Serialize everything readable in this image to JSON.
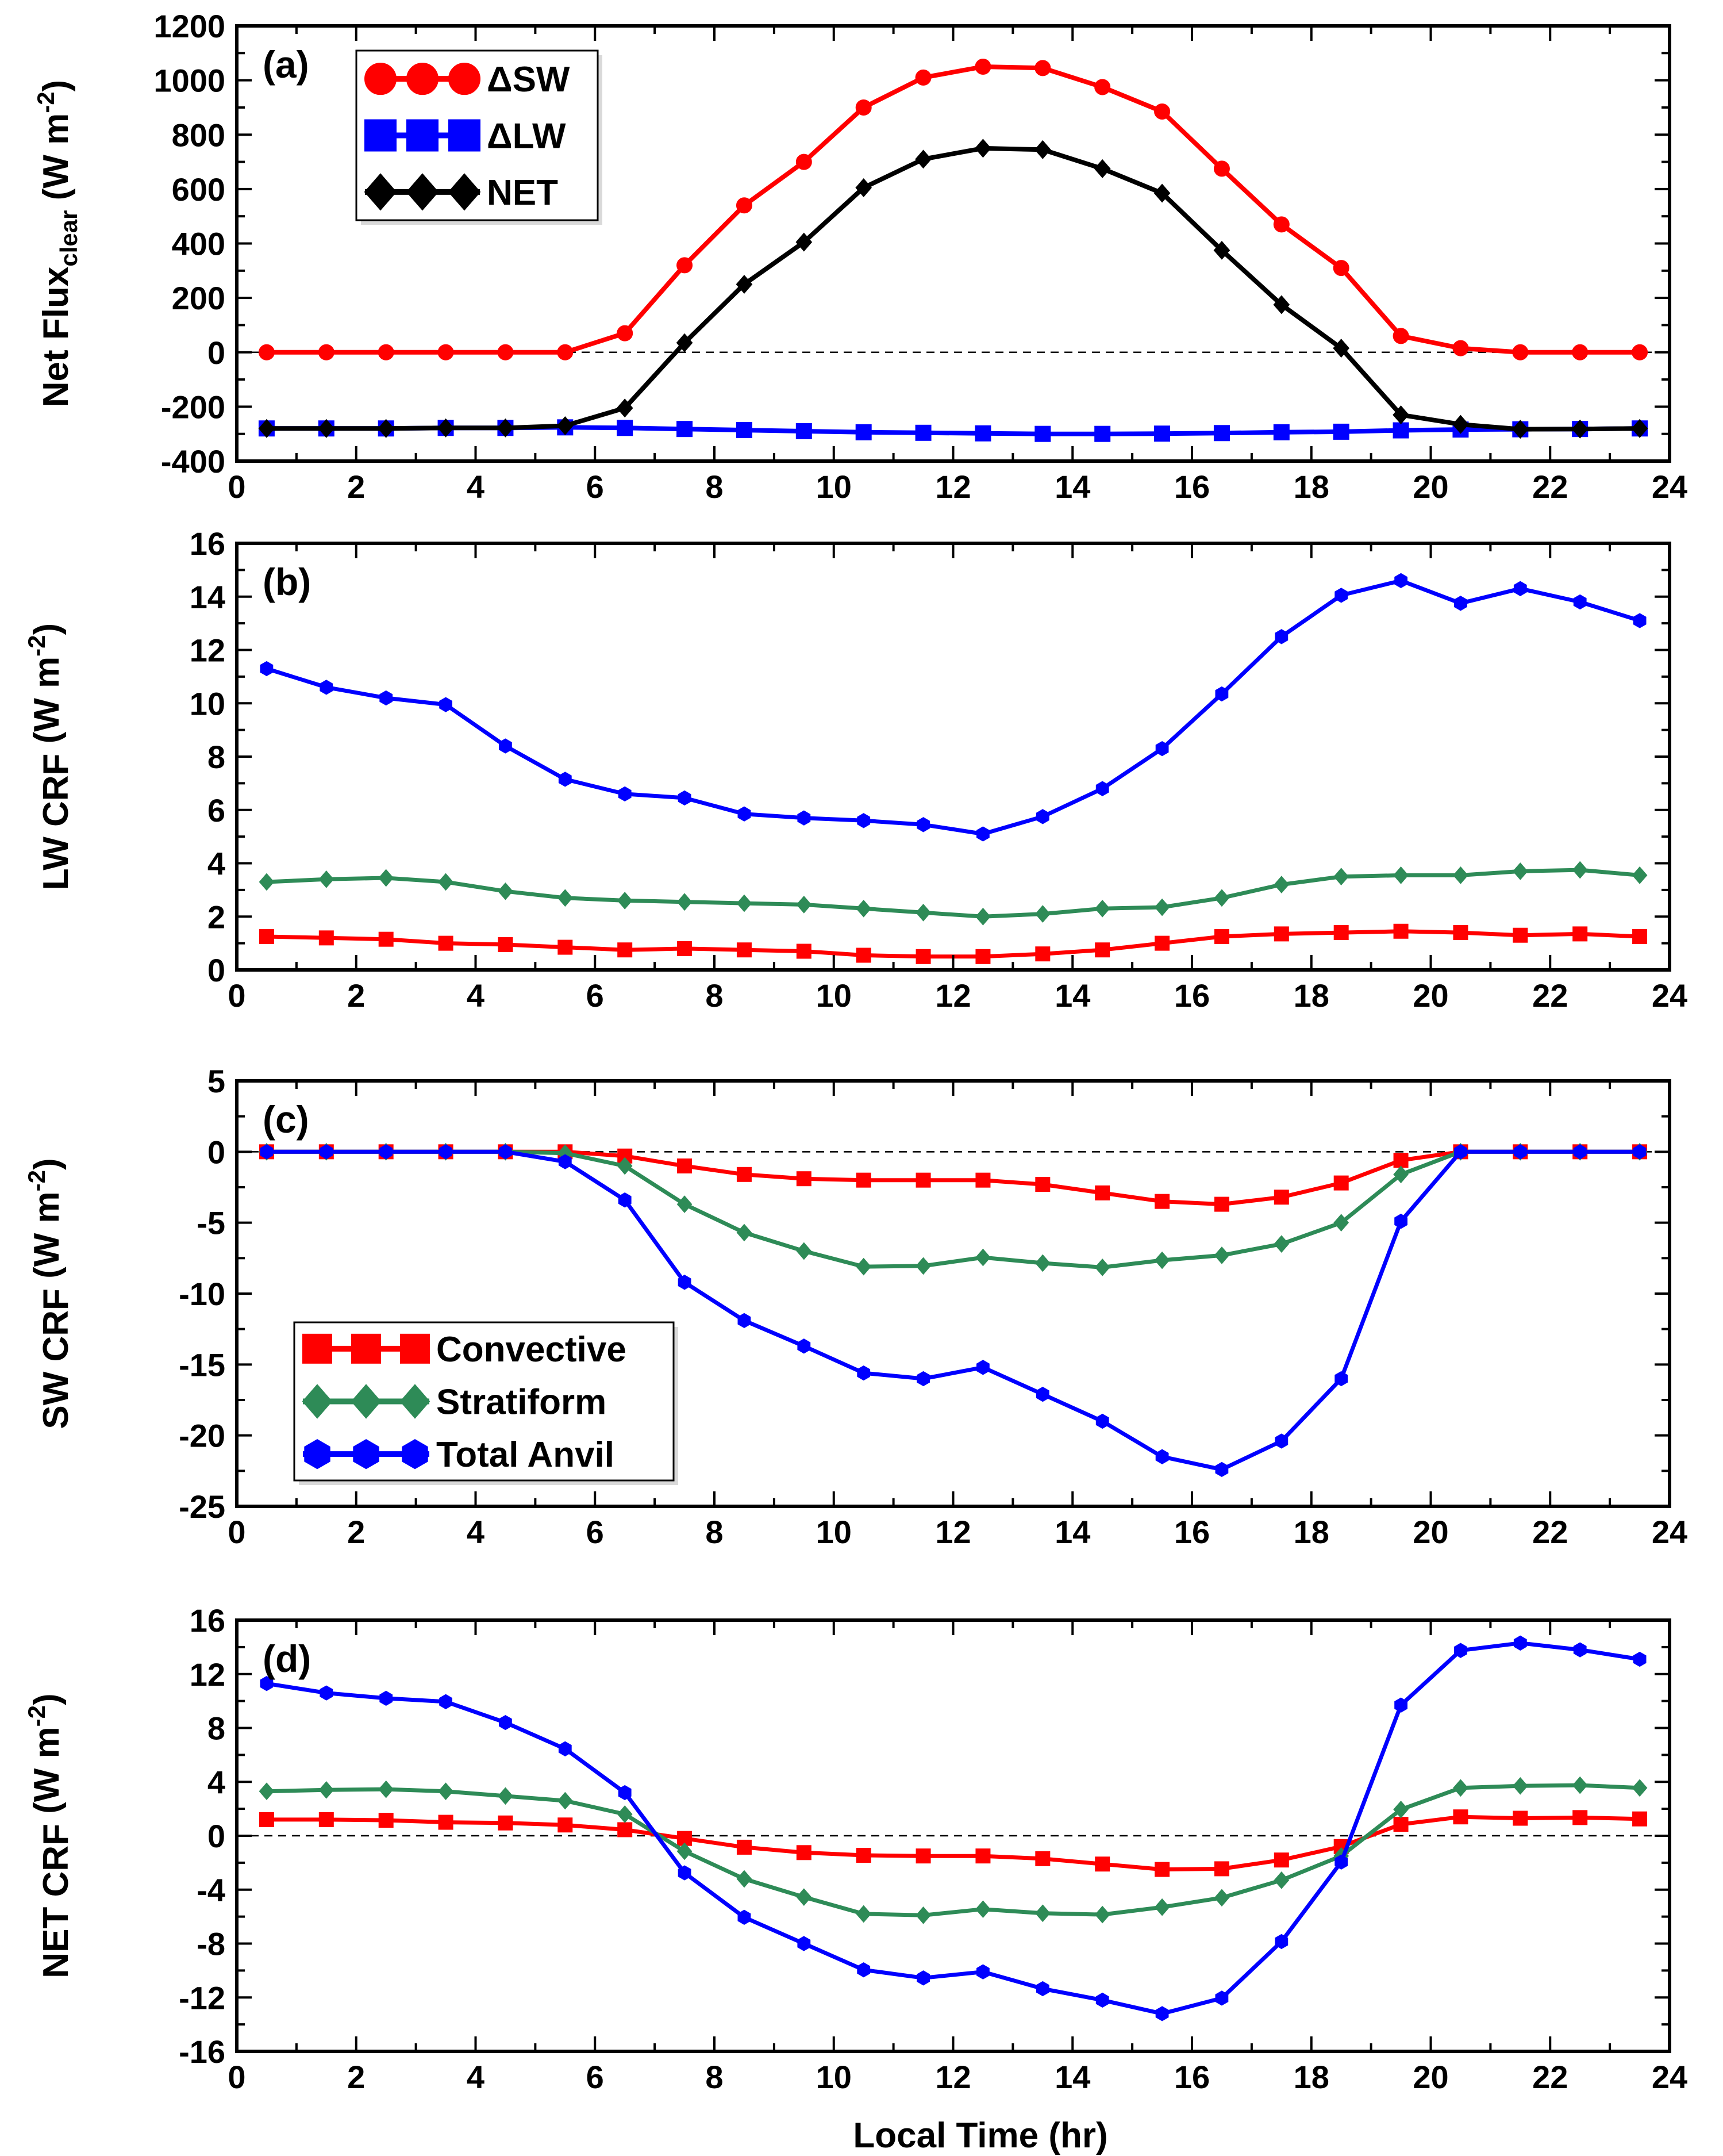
{
  "figure": {
    "xlabel": "Local Time (hr)"
  },
  "chart_data": [
    {
      "type": "line",
      "panel_label": "(a)",
      "ylabel_main": "Net Flux",
      "ylabel_sub": "clear",
      "ylabel_unit": "(W m",
      "ylabel_sup": "-2",
      "ylabel_close": ")",
      "xlim": [
        0,
        24
      ],
      "ylim": [
        -400,
        1200
      ],
      "xticks": [
        0,
        2,
        4,
        6,
        8,
        10,
        12,
        14,
        16,
        18,
        20,
        22,
        24
      ],
      "yticks": [
        -400,
        -200,
        0,
        200,
        400,
        600,
        800,
        1000,
        1200
      ],
      "zero_line": true,
      "legend_position": "top-left",
      "x": [
        0.5,
        1.5,
        2.5,
        3.5,
        4.5,
        5.5,
        6.5,
        7.5,
        8.5,
        9.5,
        10.5,
        11.5,
        12.5,
        13.5,
        14.5,
        15.5,
        16.5,
        17.5,
        18.5,
        19.5,
        20.5,
        21.5,
        22.5,
        23.5
      ],
      "series": [
        {
          "name": "ΔSW",
          "color": "#ff0000",
          "marker": "circle",
          "values": [
            0,
            0,
            0,
            0,
            0,
            0,
            70,
            320,
            540,
            700,
            900,
            1010,
            1050,
            1045,
            975,
            885,
            675,
            470,
            310,
            60,
            15,
            0,
            0,
            0
          ]
        },
        {
          "name": "ΔLW",
          "color": "#0000ff",
          "marker": "square",
          "values": [
            -280,
            -280,
            -280,
            -278,
            -278,
            -276,
            -278,
            -282,
            -286,
            -290,
            -294,
            -296,
            -298,
            -300,
            -300,
            -299,
            -297,
            -294,
            -292,
            -287,
            -284,
            -283,
            -282,
            -280
          ]
        },
        {
          "name": "NET",
          "color": "#000000",
          "marker": "diamond",
          "values": [
            -280,
            -280,
            -280,
            -278,
            -278,
            -270,
            -205,
            35,
            250,
            405,
            605,
            710,
            750,
            745,
            675,
            585,
            375,
            175,
            15,
            -230,
            -265,
            -283,
            -282,
            -280
          ]
        }
      ]
    },
    {
      "type": "line",
      "panel_label": "(b)",
      "ylabel_main": "LW CRF ",
      "ylabel_sub": "",
      "ylabel_unit": "(W m",
      "ylabel_sup": "-2",
      "ylabel_close": ")",
      "xlim": [
        0,
        24
      ],
      "ylim": [
        0,
        16
      ],
      "xticks": [
        0,
        2,
        4,
        6,
        8,
        10,
        12,
        14,
        16,
        18,
        20,
        22,
        24
      ],
      "yticks": [
        0,
        2,
        4,
        6,
        8,
        10,
        12,
        14,
        16
      ],
      "zero_line": false,
      "x": [
        0.5,
        1.5,
        2.5,
        3.5,
        4.5,
        5.5,
        6.5,
        7.5,
        8.5,
        9.5,
        10.5,
        11.5,
        12.5,
        13.5,
        14.5,
        15.5,
        16.5,
        17.5,
        18.5,
        19.5,
        20.5,
        21.5,
        22.5,
        23.5
      ],
      "series": [
        {
          "name": "Convective",
          "color": "#ff0000",
          "marker": "square",
          "values": [
            1.25,
            1.2,
            1.15,
            1.0,
            0.95,
            0.85,
            0.75,
            0.8,
            0.75,
            0.7,
            0.55,
            0.5,
            0.5,
            0.6,
            0.75,
            1.0,
            1.25,
            1.35,
            1.4,
            1.45,
            1.4,
            1.3,
            1.35,
            1.25
          ]
        },
        {
          "name": "Stratiform",
          "color": "#2e8b57",
          "marker": "diamond",
          "values": [
            3.3,
            3.4,
            3.45,
            3.3,
            2.95,
            2.7,
            2.6,
            2.55,
            2.5,
            2.45,
            2.3,
            2.15,
            2.0,
            2.1,
            2.3,
            2.35,
            2.7,
            3.2,
            3.5,
            3.55,
            3.55,
            3.7,
            3.75,
            3.55
          ]
        },
        {
          "name": "Total Anvil",
          "color": "#0000ff",
          "marker": "hexagon",
          "values": [
            11.3,
            10.6,
            10.2,
            9.95,
            8.4,
            7.15,
            6.6,
            6.45,
            5.85,
            5.7,
            5.6,
            5.45,
            5.1,
            5.75,
            6.8,
            8.3,
            10.35,
            12.5,
            14.05,
            14.6,
            13.75,
            14.3,
            13.8,
            13.1
          ]
        }
      ]
    },
    {
      "type": "line",
      "panel_label": "(c)",
      "ylabel_main": "SW CRF ",
      "ylabel_sub": "",
      "ylabel_unit": "(W m",
      "ylabel_sup": "-2",
      "ylabel_close": ")",
      "xlim": [
        0,
        24
      ],
      "ylim": [
        -25,
        5
      ],
      "xticks": [
        0,
        2,
        4,
        6,
        8,
        10,
        12,
        14,
        16,
        18,
        20,
        22,
        24
      ],
      "yticks": [
        -25,
        -20,
        -15,
        -10,
        -5,
        0,
        5
      ],
      "zero_line": true,
      "legend_position": "bottom-left",
      "x": [
        0.5,
        1.5,
        2.5,
        3.5,
        4.5,
        5.5,
        6.5,
        7.5,
        8.5,
        9.5,
        10.5,
        11.5,
        12.5,
        13.5,
        14.5,
        15.5,
        16.5,
        17.5,
        18.5,
        19.5,
        20.5,
        21.5,
        22.5,
        23.5
      ],
      "series": [
        {
          "name": "Convective",
          "color": "#ff0000",
          "marker": "square",
          "values": [
            0,
            0,
            0,
            0,
            0,
            0,
            -0.3,
            -1.0,
            -1.6,
            -1.9,
            -2.0,
            -2.0,
            -2.0,
            -2.3,
            -2.9,
            -3.5,
            -3.7,
            -3.2,
            -2.2,
            -0.6,
            0,
            0,
            0,
            0
          ]
        },
        {
          "name": "Stratiform",
          "color": "#2e8b57",
          "marker": "diamond",
          "values": [
            0,
            0,
            0,
            0,
            0,
            -0.1,
            -1.0,
            -3.7,
            -5.7,
            -7.0,
            -8.1,
            -8.05,
            -7.45,
            -7.85,
            -8.15,
            -7.65,
            -7.3,
            -6.5,
            -5.0,
            -1.6,
            0,
            0,
            0,
            0
          ]
        },
        {
          "name": "Total Anvil",
          "color": "#0000ff",
          "marker": "hexagon",
          "values": [
            0,
            0,
            0,
            0,
            0,
            -0.7,
            -3.4,
            -9.2,
            -11.9,
            -13.7,
            -15.6,
            -16.0,
            -15.2,
            -17.1,
            -19.0,
            -21.5,
            -22.4,
            -20.4,
            -16.0,
            -4.9,
            0,
            0,
            0,
            0
          ]
        }
      ]
    },
    {
      "type": "line",
      "panel_label": "(d)",
      "ylabel_main": "NET CRF ",
      "ylabel_sub": "",
      "ylabel_unit": "(W m",
      "ylabel_sup": "-2",
      "ylabel_close": ")",
      "xlim": [
        0,
        24
      ],
      "ylim": [
        -16,
        16
      ],
      "xticks": [
        0,
        2,
        4,
        6,
        8,
        10,
        12,
        14,
        16,
        18,
        20,
        22,
        24
      ],
      "yticks": [
        -16,
        -12,
        -8,
        -4,
        0,
        4,
        8,
        12,
        16
      ],
      "zero_line": true,
      "x": [
        0.5,
        1.5,
        2.5,
        3.5,
        4.5,
        5.5,
        6.5,
        7.5,
        8.5,
        9.5,
        10.5,
        11.5,
        12.5,
        13.5,
        14.5,
        15.5,
        16.5,
        17.5,
        18.5,
        19.5,
        20.5,
        21.5,
        22.5,
        23.5
      ],
      "series": [
        {
          "name": "Convective",
          "color": "#ff0000",
          "marker": "square",
          "values": [
            1.2,
            1.2,
            1.15,
            1.0,
            0.95,
            0.8,
            0.45,
            -0.2,
            -0.85,
            -1.25,
            -1.45,
            -1.5,
            -1.5,
            -1.7,
            -2.1,
            -2.5,
            -2.45,
            -1.8,
            -0.8,
            0.85,
            1.4,
            1.3,
            1.35,
            1.25
          ]
        },
        {
          "name": "Stratiform",
          "color": "#2e8b57",
          "marker": "diamond",
          "values": [
            3.3,
            3.4,
            3.45,
            3.3,
            2.95,
            2.6,
            1.6,
            -1.15,
            -3.2,
            -4.55,
            -5.8,
            -5.9,
            -5.45,
            -5.75,
            -5.85,
            -5.3,
            -4.6,
            -3.3,
            -1.5,
            1.95,
            3.55,
            3.7,
            3.75,
            3.55
          ]
        },
        {
          "name": "Total Anvil",
          "color": "#0000ff",
          "marker": "hexagon",
          "values": [
            11.3,
            10.6,
            10.2,
            9.95,
            8.4,
            6.45,
            3.2,
            -2.75,
            -6.05,
            -8.0,
            -9.95,
            -10.55,
            -10.1,
            -11.35,
            -12.2,
            -13.2,
            -12.05,
            -7.85,
            -1.95,
            9.7,
            13.75,
            14.3,
            13.8,
            13.1
          ]
        }
      ]
    }
  ]
}
